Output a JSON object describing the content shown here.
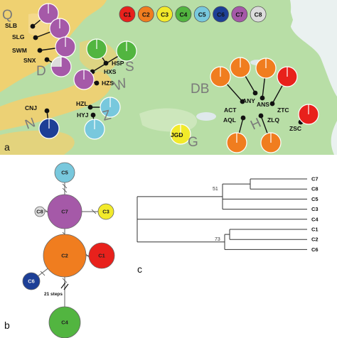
{
  "colors": {
    "C1": "#e8211c",
    "C2": "#f07d1f",
    "C3": "#f2ea2b",
    "C4": "#52b540",
    "C5": "#78c8dd",
    "C6": "#1d3f96",
    "C7": "#a559a8",
    "C8": "#dcdcdc",
    "land": "#b8dea6",
    "highland": "#f5cf6c",
    "sea": "#eaf1f0"
  },
  "panels": {
    "a": "a",
    "b": "b",
    "c": "c"
  },
  "legend": [
    "C1",
    "C2",
    "C3",
    "C4",
    "C5",
    "C6",
    "C7",
    "C8"
  ],
  "regions": [
    {
      "id": "Q",
      "label": "Q"
    },
    {
      "id": "D",
      "label": "D"
    },
    {
      "id": "S",
      "label": "S"
    },
    {
      "id": "W",
      "label": "W"
    },
    {
      "id": "N",
      "label": "N"
    },
    {
      "id": "Z",
      "label": "Z"
    },
    {
      "id": "DB",
      "label": "DB"
    },
    {
      "id": "H",
      "label": "H"
    },
    {
      "id": "G",
      "label": "G"
    }
  ],
  "sites": [
    {
      "id": "SLB",
      "label": "SLB"
    },
    {
      "id": "SLG",
      "label": "SLG"
    },
    {
      "id": "SWM",
      "label": "SWM"
    },
    {
      "id": "SNX",
      "label": "SNX"
    },
    {
      "id": "HSP",
      "label": "HSP"
    },
    {
      "id": "HXS",
      "label": "HXS"
    },
    {
      "id": "HZS",
      "label": "HZS"
    },
    {
      "id": "HZL",
      "label": "HZL"
    },
    {
      "id": "HYJ",
      "label": "HYJ"
    },
    {
      "id": "CNJ",
      "label": "CNJ"
    },
    {
      "id": "JGD",
      "label": "JGD"
    },
    {
      "id": "ACT",
      "label": "ACT"
    },
    {
      "id": "AQL",
      "label": "AQL"
    },
    {
      "id": "ANY",
      "label": "ANY"
    },
    {
      "id": "ANS",
      "label": "ANS"
    },
    {
      "id": "ZTC",
      "label": "ZTC"
    },
    {
      "id": "ZLQ",
      "label": "ZLQ"
    },
    {
      "id": "ZSC",
      "label": "ZSC"
    }
  ],
  "map_pies": [
    {
      "site": "SLB",
      "slices": [
        {
          "hap": "C7",
          "frac": 1
        }
      ]
    },
    {
      "site": "SLG",
      "slices": [
        {
          "hap": "C7",
          "frac": 1
        }
      ]
    },
    {
      "site": "SWM",
      "slices": [
        {
          "hap": "C7",
          "frac": 1
        }
      ]
    },
    {
      "site": "SNX",
      "slices": [
        {
          "hap": "C7",
          "frac": 0.75
        },
        {
          "hap": "C8",
          "frac": 0.25
        }
      ]
    },
    {
      "site": "HSP",
      "slices": [
        {
          "hap": "C4",
          "frac": 1
        }
      ]
    },
    {
      "site": "HXS",
      "slices": [
        {
          "hap": "C4",
          "frac": 1
        }
      ]
    },
    {
      "site": "HZS",
      "slices": [
        {
          "hap": "C7",
          "frac": 1
        }
      ]
    },
    {
      "site": "HZL",
      "slices": [
        {
          "hap": "C5",
          "frac": 1
        }
      ]
    },
    {
      "site": "HYJ",
      "slices": [
        {
          "hap": "C5",
          "frac": 1
        }
      ]
    },
    {
      "site": "CNJ",
      "slices": [
        {
          "hap": "C6",
          "frac": 1
        }
      ]
    },
    {
      "site": "JGD",
      "slices": [
        {
          "hap": "C3",
          "frac": 1
        }
      ]
    },
    {
      "site": "ACT",
      "slices": [
        {
          "hap": "C2",
          "frac": 1
        }
      ]
    },
    {
      "site": "ANY",
      "slices": [
        {
          "hap": "C2",
          "frac": 1
        }
      ]
    },
    {
      "site": "ANS",
      "slices": [
        {
          "hap": "C2",
          "frac": 1
        }
      ]
    },
    {
      "site": "ZTC",
      "slices": [
        {
          "hap": "C1",
          "frac": 1
        }
      ]
    },
    {
      "site": "AQL",
      "slices": [
        {
          "hap": "C2",
          "frac": 1
        }
      ]
    },
    {
      "site": "ZLQ",
      "slices": [
        {
          "hap": "C2",
          "frac": 1
        }
      ]
    },
    {
      "site": "ZSC",
      "slices": [
        {
          "hap": "C1",
          "frac": 1
        }
      ]
    }
  ],
  "network": {
    "nodes": [
      "C5",
      "C7",
      "C8",
      "C3",
      "C2",
      "C1",
      "C6",
      "C4"
    ],
    "edges": [
      [
        "C5",
        "C7"
      ],
      [
        "C7",
        "C8"
      ],
      [
        "C7",
        "C3"
      ],
      [
        "C7",
        "C2"
      ],
      [
        "C2",
        "C1"
      ],
      [
        "C2",
        "C6"
      ],
      [
        "C2",
        "C4"
      ]
    ],
    "long_branch": {
      "from": "C2",
      "to": "C4",
      "label": "21 steps"
    }
  },
  "tree": {
    "tips": [
      "C7",
      "C8",
      "C5",
      "C3",
      "C4",
      "C1",
      "C2",
      "C6"
    ],
    "support": [
      "51",
      "73"
    ]
  }
}
